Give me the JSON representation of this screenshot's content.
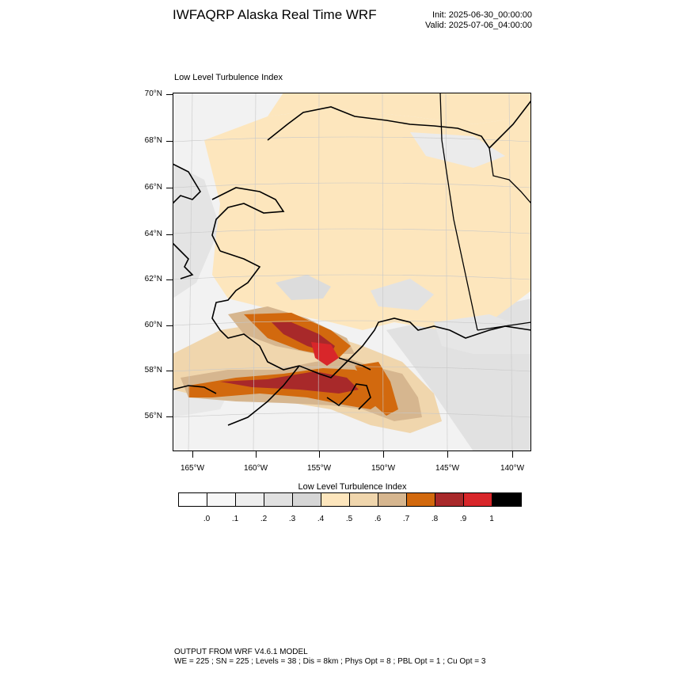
{
  "header": {
    "title": "IWFAQRP Alaska Real Time WRF",
    "init": "Init: 2025-06-30_00:00:00",
    "valid": "Valid: 2025-07-06_04:00:00"
  },
  "plot_title": "Low Level Turbulence Index",
  "lat_labels": [
    "70°N",
    "68°N",
    "66°N",
    "64°N",
    "62°N",
    "60°N",
    "58°N",
    "56°N"
  ],
  "lon_labels": [
    "165°W",
    "160°W",
    "155°W",
    "150°W",
    "145°W",
    "140°W"
  ],
  "legend": {
    "title": "Low Level Turbulence Index",
    "labels": [
      ".0",
      ".1",
      ".2",
      ".3",
      ".4",
      ".5",
      ".6",
      ".7",
      ".8",
      ".9",
      "1"
    ],
    "colors": [
      "#ffffff",
      "#f7f7f7",
      "#eeeeee",
      "#e1e1e1",
      "#d6d6d6",
      "#fde6bd",
      "#f0d6ad",
      "#d6b68f",
      "#d2690e",
      "#a8292a",
      "#d8262a",
      "#000000"
    ]
  },
  "footer": {
    "line1": "OUTPUT FROM WRF V4.6.1 MODEL",
    "line2": "WE = 225 ; SN = 225 ; Levels = 38 ; Dis = 8km ; Phys Opt = 8 ; PBL Opt = 1 ; Cu Opt = 3"
  }
}
